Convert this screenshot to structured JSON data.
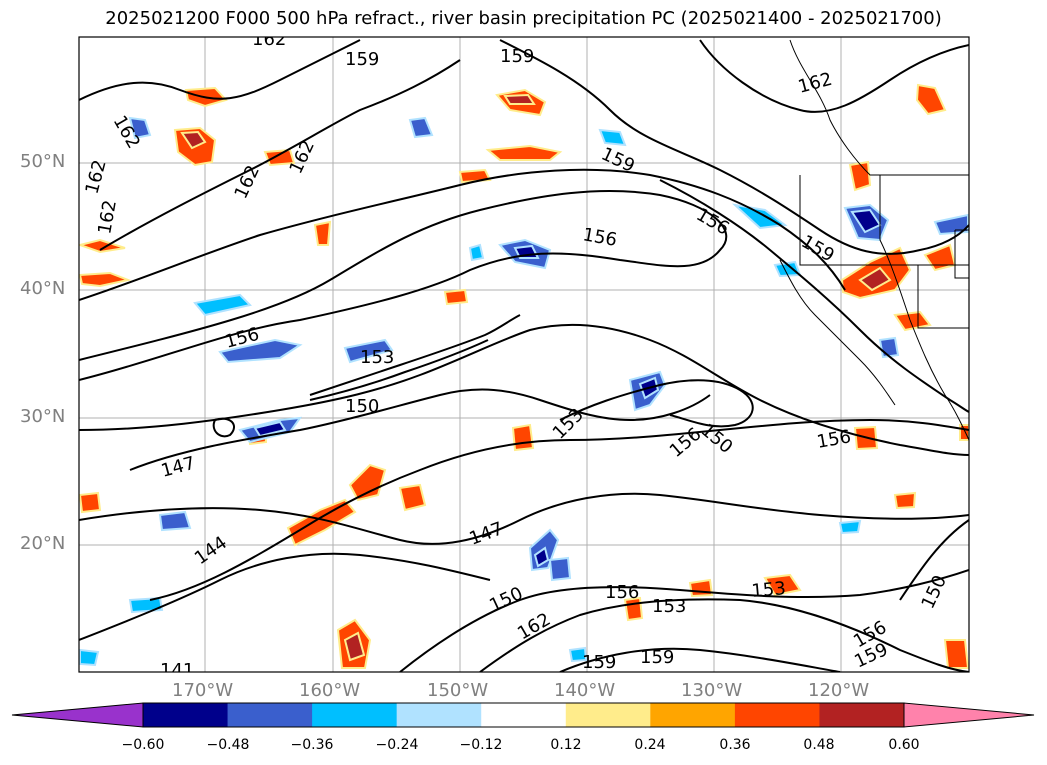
{
  "title": "2025021200 F000 500 hPa refract., river basin precipitation PC (2025021400 - 2025021700)",
  "lat_labels": [
    "50°N",
    "40°N",
    "30°N",
    "20°N"
  ],
  "lon_labels": [
    "170°W",
    "160°W",
    "150°W",
    "140°W",
    "130°W",
    "120°W"
  ],
  "contour_labels": [
    "162",
    "159",
    "162",
    "159",
    "162",
    "162",
    "162",
    "156",
    "159",
    "156",
    "159",
    "156",
    "153",
    "150",
    "153",
    "156",
    "150",
    "156",
    "147",
    "147",
    "144",
    "150",
    "153",
    "156",
    "153",
    "162",
    "159",
    "159",
    "150",
    "156",
    "159",
    "141",
    "162",
    "162"
  ],
  "colorbar": {
    "ticks": [
      "−0.60",
      "−0.48",
      "−0.36",
      "−0.24",
      "−0.12",
      "0.12",
      "0.24",
      "0.36",
      "0.48",
      "0.60"
    ],
    "colors": [
      "#9932cc",
      "#00008b",
      "#3a5fcd",
      "#00bfff",
      "#b0e2ff",
      "#ffffff",
      "#ffec8b",
      "#ffa500",
      "#ff4500",
      "#b22222",
      "#ff82ab"
    ]
  }
}
